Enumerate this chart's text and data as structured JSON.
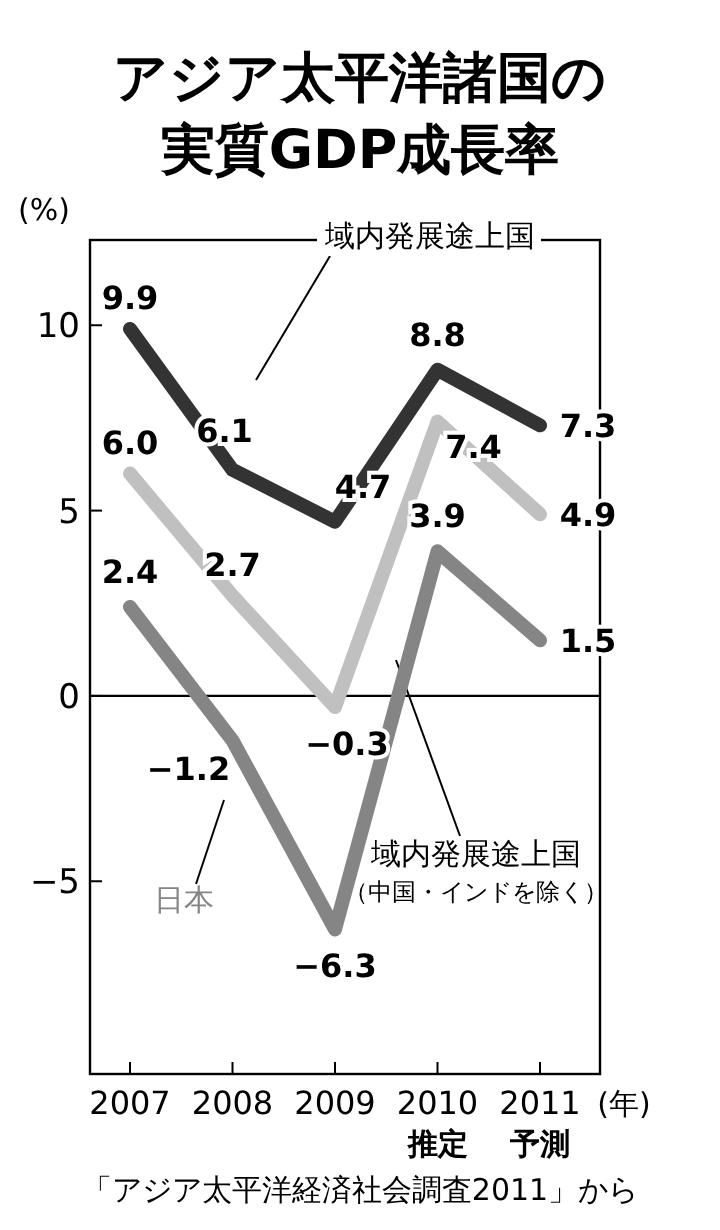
{
  "chart_data": {
    "type": "line",
    "title": "アジア太平洋諸国の実質GDP成長率",
    "ylabel": "(%)",
    "xlabel": "(年)",
    "categories": [
      "2007",
      "2008",
      "2009",
      "2010",
      "2011"
    ],
    "ylim": [
      -10.2,
      12.3
    ],
    "yticks": [
      10,
      5,
      0,
      -5
    ],
    "series": [
      {
        "name": "域内発展途上国",
        "color": "#333333",
        "values": [
          9.9,
          6.1,
          4.7,
          8.8,
          7.3
        ],
        "value_labels": [
          "9.9",
          "6.1",
          "4.7",
          "8.8",
          "7.3"
        ]
      },
      {
        "name": "域内発展途上国（中国・インドを除く）",
        "color": "#c0c0c0",
        "values": [
          6.0,
          2.7,
          -0.3,
          7.4,
          4.9
        ],
        "value_labels": [
          "6.0",
          "2.7",
          "−0.3",
          "7.4",
          "4.9"
        ]
      },
      {
        "name": "日本",
        "color": "#858585",
        "values": [
          2.4,
          -1.2,
          -6.3,
          3.9,
          1.5
        ],
        "value_labels": [
          "2.4",
          "−1.2",
          "−6.3",
          "3.9",
          "1.5"
        ]
      }
    ],
    "ref_lines": [
      {
        "axis": "y",
        "value": 0,
        "color": "#000000"
      }
    ],
    "grid": false,
    "marker": "none",
    "line_style": "solid",
    "annotations": [
      "推定",
      "予測",
      "「アジア太平洋経済社会調査2011」から"
    ]
  }
}
